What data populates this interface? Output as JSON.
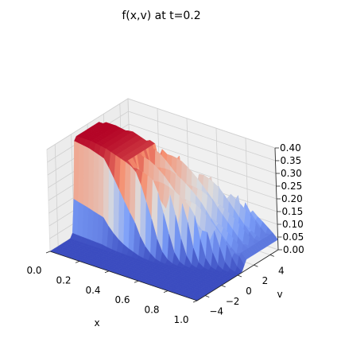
{
  "chart_data": {
    "type": "surface3d",
    "title": "f(x,v) at t=0.2",
    "xlabel": "x",
    "ylabel": "v",
    "zlabel": "",
    "colormap": "coolwarm",
    "xlim": [
      0.0,
      1.0
    ],
    "ylim": [
      -5,
      5
    ],
    "zlim": [
      0.0,
      0.4
    ],
    "x_ticks": [
      "0.0",
      "0.2",
      "0.4",
      "0.6",
      "0.8",
      "1.0"
    ],
    "y_ticks": [
      "−4",
      "−2",
      "0",
      "2",
      "4"
    ],
    "z_ticks": [
      "0.00",
      "0.05",
      "0.10",
      "0.15",
      "0.20",
      "0.25",
      "0.30",
      "0.35",
      "0.40"
    ],
    "grid": true,
    "x_samples": [
      0.0,
      0.1,
      0.2,
      0.3,
      0.4,
      0.5,
      0.6,
      0.7,
      0.8,
      0.9,
      1.0
    ],
    "v_samples": [
      -5,
      -4,
      -3,
      -2,
      -1,
      0,
      1,
      2,
      3,
      4,
      5
    ],
    "peak_f_by_x": [
      0.38,
      0.38,
      0.37,
      0.35,
      0.33,
      0.3,
      0.26,
      0.22,
      0.16,
      0.1,
      0.04
    ],
    "center_v_by_x": [
      0.0,
      0.1,
      0.2,
      0.4,
      0.6,
      0.9,
      1.3,
      1.8,
      2.4,
      3.0,
      3.5
    ]
  }
}
